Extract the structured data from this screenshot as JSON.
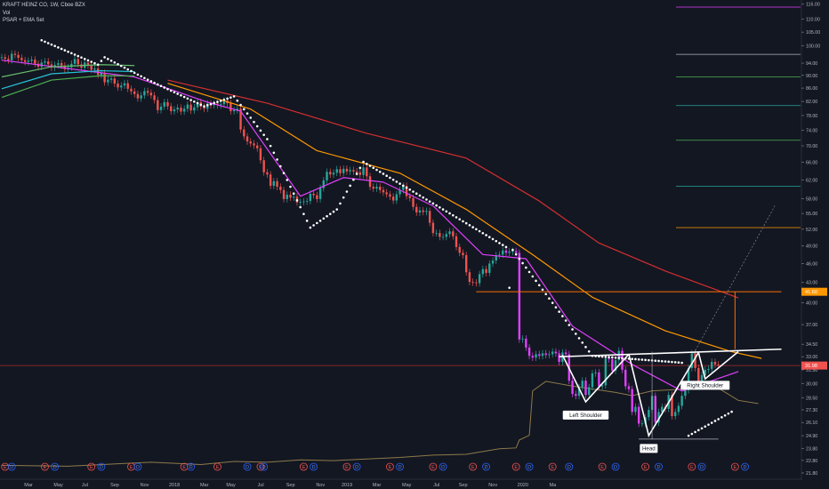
{
  "header": {
    "symbol_line": "KRAFT HEINZ CO, 1W, Cboe BZX",
    "indicator_1": "Vol",
    "indicator_2": "PSAR + EMA Set"
  },
  "colors": {
    "background": "#131722",
    "up_candle": "#26a69a",
    "down_candle": "#ef5350",
    "psar_down_candle": "#e040fb",
    "ema_fast": "#e040fb",
    "ema_mid": "#ff9800",
    "ema_slow": "#d32f2f",
    "ema_green": "#4caf50",
    "ema_teal": "#26c6da",
    "psar": "#ffffff",
    "volume_line": "#8d7a4a",
    "pattern": "#ffffff",
    "price_level": "#ff6d00"
  },
  "chart_data": {
    "type": "candlestick",
    "title": "KRAFT HEINZ CO, 1W, Cboe BZX",
    "y_scale": "log",
    "ylim": [
      21.8,
      117
    ],
    "x_axis_labels": [
      "Mar",
      "May",
      "Jul",
      "Sep",
      "Nov",
      "2018",
      "Mar",
      "May",
      "Jul",
      "Sep",
      "Nov",
      "2019",
      "Mar",
      "May",
      "Jul",
      "Sep",
      "Nov",
      "2020",
      "Ma"
    ],
    "y_axis_labels": [
      "116.00",
      "110.00",
      "105.00",
      "100.00",
      "94.00",
      "90.00",
      "86.00",
      "82.00",
      "78.00",
      "74.00",
      "70.00",
      "66.00",
      "62.00",
      "58.00",
      "55.00",
      "52.00",
      "49.00",
      "46.00",
      "43.00",
      "40.00",
      "37.00",
      "34.50",
      "33.00",
      "31.50",
      "30.00",
      "28.50",
      "27.30",
      "26.10",
      "24.90",
      "23.80",
      "22.80",
      "21.80"
    ],
    "price_labels": [
      {
        "text": "41.60",
        "value": 41.6,
        "color": "#ff9800"
      },
      {
        "text": "31.98",
        "value": 31.98,
        "color": "#ef5350"
      }
    ],
    "key_levels": [
      {
        "name": "breakout-level",
        "value": 41.6
      },
      {
        "name": "current-price",
        "value": 31.98
      }
    ],
    "fib_levels": [
      {
        "value": 114.8,
        "color": "#e040fb"
      },
      {
        "value": 97,
        "color": "#b2b5be"
      },
      {
        "value": 89.5,
        "color": "#4caf50"
      },
      {
        "value": 80.8,
        "color": "#26a69a"
      },
      {
        "value": 71.4,
        "color": "#4caf50"
      },
      {
        "value": 60.6,
        "color": "#26a69a"
      },
      {
        "value": 52.3,
        "color": "#ff9800"
      }
    ],
    "annotations": [
      {
        "text": "Left Shoulder",
        "x_week": 176,
        "value": 26.8
      },
      {
        "text": "Head",
        "x_week": 195,
        "value": 23.8
      },
      {
        "text": "Right Shoulder",
        "x_week": 212,
        "value": 29.8
      }
    ],
    "pattern_points": {
      "left_shoulder": [
        [
          169,
          33.2
        ],
        [
          176,
          28.1
        ],
        [
          189,
          33.3
        ]
      ],
      "head": [
        [
          189,
          33.3
        ],
        [
          195,
          24.9
        ],
        [
          210,
          33.5
        ]
      ],
      "right_shoulder": [
        [
          210,
          33.5
        ],
        [
          212,
          30.5
        ],
        [
          222,
          33.6
        ]
      ],
      "neckline": [
        [
          168,
          33.0
        ],
        [
          235,
          33.9
        ]
      ],
      "target_arrow": [
        [
          221,
          33.9
        ],
        [
          221,
          41.6
        ]
      ],
      "projection": [
        [
          208,
          33.0
        ],
        [
          233,
          56.5
        ]
      ],
      "target_line": [
        [
          143,
          41.6
        ],
        [
          235,
          41.6
        ]
      ]
    },
    "series": [
      {
        "name": "Price",
        "weeks_start": 0,
        "close": [
          96,
          95.5,
          95,
          97.2,
          96.8,
          95.8,
          95,
          94.4,
          94.8,
          95.2,
          93.8,
          92.8,
          94.2,
          94.6,
          93.6,
          92.5,
          93.4,
          94,
          93.2,
          92,
          92.6,
          93.8,
          95.4,
          93.6,
          92.5,
          94.2,
          93.2,
          91.8,
          92.2,
          90.1,
          90.8,
          87.8,
          88.6,
          89,
          87.4,
          86.2,
          86.8,
          87.5,
          85.8,
          85,
          84.2,
          82.9,
          83.8,
          85.1,
          84.6,
          83.8,
          82.4,
          79.5,
          80.5,
          81.8,
          80.6,
          79.2,
          79.7,
          80.2,
          79.1,
          79.9,
          81.1,
          79.4,
          80.3,
          81.8,
          80.5,
          79.9,
          81.4,
          80.9,
          81.4,
          80.9,
          81.2,
          82.3,
          81.5,
          79.2,
          79.5,
          79.9,
          74.2,
          72.4,
          71.1,
          70.6,
          70.1,
          69.4,
          66.5,
          63.7,
          63.2,
          60.7,
          61.7,
          60.5,
          59.8,
          57.9,
          58.8,
          58.2,
          58.4,
          57.2,
          57.3,
          57.4,
          57.5,
          59,
          58.7,
          57.9,
          60.2,
          61.9,
          63.8,
          63.2,
          63.6,
          64.4,
          63.5,
          64.5,
          63.9,
          64.2,
          63.9,
          63.7,
          63.1,
          64.8,
          62.8,
          60.5,
          60.1,
          60.5,
          59.8,
          59.3,
          58.9,
          58.4,
          57.6,
          58.9,
          59.8,
          60.7,
          58.5,
          58.1,
          56.3,
          55.2,
          55.6,
          55.3,
          55.5,
          53.2,
          51.3,
          51.3,
          50.6,
          50.6,
          51.1,
          51.6,
          50.7,
          48.8,
          47.8,
          47.4,
          44.6,
          43.1,
          43,
          42.9,
          44.3,
          45.1,
          44.5,
          46,
          46.5,
          47.4,
          47.5,
          48.2,
          47.8,
          48,
          48.1,
          47.8,
          35.1,
          35.2,
          34.1,
          33.1,
          32.9,
          33.3,
          33.1,
          33.4,
          33.2,
          33.3,
          33.6,
          33.4,
          32.4,
          33.5,
          33.3,
          30.3,
          28.9,
          28.7,
          29.6,
          30.3,
          28.8,
          29.6,
          31.1,
          31.2,
          29.7,
          29.8,
          32.8,
          32.7,
          31.4,
          32.6,
          33.7,
          31.5,
          29.7,
          29.4,
          27.1,
          27.6,
          26,
          26,
          26.6,
          27.3,
          28.7,
          26.1,
          27.1,
          27.6,
          27.4,
          28.8,
          26.7,
          27.1,
          27.7,
          28.7,
          29.3,
          31.7,
          33.4,
          31.7,
          30.2,
          30.9,
          31.5,
          31.6,
          32.4,
          32.1,
          31.98
        ]
      },
      {
        "name": "EMA fast",
        "color": "#e040fb",
        "values": [
          [
            0,
            95
          ],
          [
            40,
            89.5
          ],
          [
            62,
            81.8
          ],
          [
            72,
            79.2
          ],
          [
            90,
            58.5
          ],
          [
            103,
            62.5
          ],
          [
            115,
            61.5
          ],
          [
            130,
            56.5
          ],
          [
            145,
            47.5
          ],
          [
            158,
            46.8
          ],
          [
            172,
            36.8
          ],
          [
            190,
            32.1
          ],
          [
            205,
            29.2
          ],
          [
            222,
            31.3
          ]
        ]
      },
      {
        "name": "EMA mid",
        "color": "#ff9800",
        "values": [
          [
            50,
            87.5
          ],
          [
            75,
            79.8
          ],
          [
            95,
            68.8
          ],
          [
            120,
            63.5
          ],
          [
            140,
            55.8
          ],
          [
            160,
            47.5
          ],
          [
            178,
            40.8
          ],
          [
            200,
            36.2
          ],
          [
            220,
            33.6
          ],
          [
            229,
            32.8
          ]
        ]
      },
      {
        "name": "EMA slow",
        "color": "#d32f2f",
        "values": [
          [
            50,
            88.5
          ],
          [
            80,
            81.5
          ],
          [
            110,
            73.2
          ],
          [
            140,
            67
          ],
          [
            162,
            57.5
          ],
          [
            180,
            49.5
          ],
          [
            200,
            44.8
          ],
          [
            222,
            40.7
          ]
        ]
      },
      {
        "name": "EMA green",
        "color": "#4caf50",
        "values": [
          [
            0,
            83.2
          ],
          [
            15,
            88.5
          ],
          [
            30,
            89.9
          ],
          [
            40,
            89.8
          ]
        ]
      },
      {
        "name": "EMA teal",
        "color": "#26c6da",
        "values": [
          [
            0,
            85.8
          ],
          [
            15,
            90.5
          ],
          [
            30,
            91.5
          ],
          [
            40,
            91.2
          ]
        ]
      },
      {
        "name": "EMA light green",
        "color": "#66bb6a",
        "values": [
          [
            0,
            89.5
          ],
          [
            15,
            92.8
          ],
          [
            30,
            93.5
          ],
          [
            40,
            93.2
          ]
        ]
      },
      {
        "name": "PSAR",
        "color": "#ffffff",
        "values": [
          [
            12,
            102
          ],
          [
            29,
            93.5
          ],
          [
            31,
            96
          ],
          [
            44,
            88.6
          ],
          [
            61,
            80.6
          ],
          [
            70,
            83.5
          ],
          [
            80,
            71.7
          ],
          [
            93,
            52.3
          ],
          [
            101,
            55.8
          ],
          [
            109,
            66.1
          ],
          [
            152,
            48.8
          ],
          [
            153,
            42.2
          ],
          [
            154,
            48.3
          ],
          [
            178,
            33.1
          ],
          [
            205,
            32.3
          ],
          [
            207,
            24.9
          ],
          [
            221,
            27.3
          ]
        ]
      }
    ],
    "volume_ylim": [
      0,
      60
    ],
    "volume_line": [
      [
        0,
        2
      ],
      [
        20,
        1.5
      ],
      [
        35,
        3
      ],
      [
        45,
        4
      ],
      [
        60,
        2.5
      ],
      [
        70,
        4.5
      ],
      [
        80,
        4
      ],
      [
        90,
        5.5
      ],
      [
        100,
        5
      ],
      [
        110,
        6
      ],
      [
        120,
        7
      ],
      [
        130,
        8.5
      ],
      [
        140,
        9
      ],
      [
        150,
        12.5
      ],
      [
        155,
        13
      ],
      [
        156,
        18
      ],
      [
        159,
        21
      ],
      [
        160,
        49
      ],
      [
        164,
        55
      ],
      [
        172,
        52
      ],
      [
        185,
        48
      ],
      [
        190,
        46
      ],
      [
        196,
        49
      ],
      [
        205,
        50
      ],
      [
        215,
        52
      ],
      [
        222,
        43
      ],
      [
        228,
        41
      ]
    ],
    "events": [
      {
        "label": "E",
        "x_week": 1
      },
      {
        "label": "D",
        "x_week": 3
      },
      {
        "label": "E",
        "x_week": 13
      },
      {
        "label": "D",
        "x_week": 16
      },
      {
        "label": "E",
        "x_week": 27
      },
      {
        "label": "D",
        "x_week": 30
      },
      {
        "label": "E",
        "x_week": 39
      },
      {
        "label": "D",
        "x_week": 41
      },
      {
        "label": "E",
        "x_week": 55
      },
      {
        "label": "D",
        "x_week": 57
      },
      {
        "label": "E",
        "x_week": 65
      },
      {
        "label": "D",
        "x_week": 74
      },
      {
        "label": "E",
        "x_week": 78
      },
      {
        "label": "D",
        "x_week": 79
      },
      {
        "label": "E",
        "x_week": 91
      },
      {
        "label": "D",
        "x_week": 94
      },
      {
        "label": "E",
        "x_week": 104
      },
      {
        "label": "D",
        "x_week": 107
      },
      {
        "label": "E",
        "x_week": 117
      },
      {
        "label": "D",
        "x_week": 120
      },
      {
        "label": "E",
        "x_week": 130
      },
      {
        "label": "D",
        "x_week": 133
      },
      {
        "label": "E",
        "x_week": 142
      },
      {
        "label": "D",
        "x_week": 146
      },
      {
        "label": "E",
        "x_week": 155
      },
      {
        "label": "D",
        "x_week": 159
      },
      {
        "label": "E",
        "x_week": 166
      },
      {
        "label": "D",
        "x_week": 171
      },
      {
        "label": "E",
        "x_week": 181
      },
      {
        "label": "D",
        "x_week": 185
      },
      {
        "label": "E",
        "x_week": 194
      },
      {
        "label": "D",
        "x_week": 198
      },
      {
        "label": "E",
        "x_week": 208
      },
      {
        "label": "D",
        "x_week": 211
      },
      {
        "label": "E",
        "x_week": 221
      },
      {
        "label": "D",
        "x_week": 224
      }
    ],
    "x_tick_weeks": [
      0,
      9,
      17,
      26,
      35,
      44,
      53,
      61,
      70,
      79,
      88,
      96,
      105,
      114,
      123,
      131,
      140,
      149,
      158
    ],
    "grid": false
  }
}
